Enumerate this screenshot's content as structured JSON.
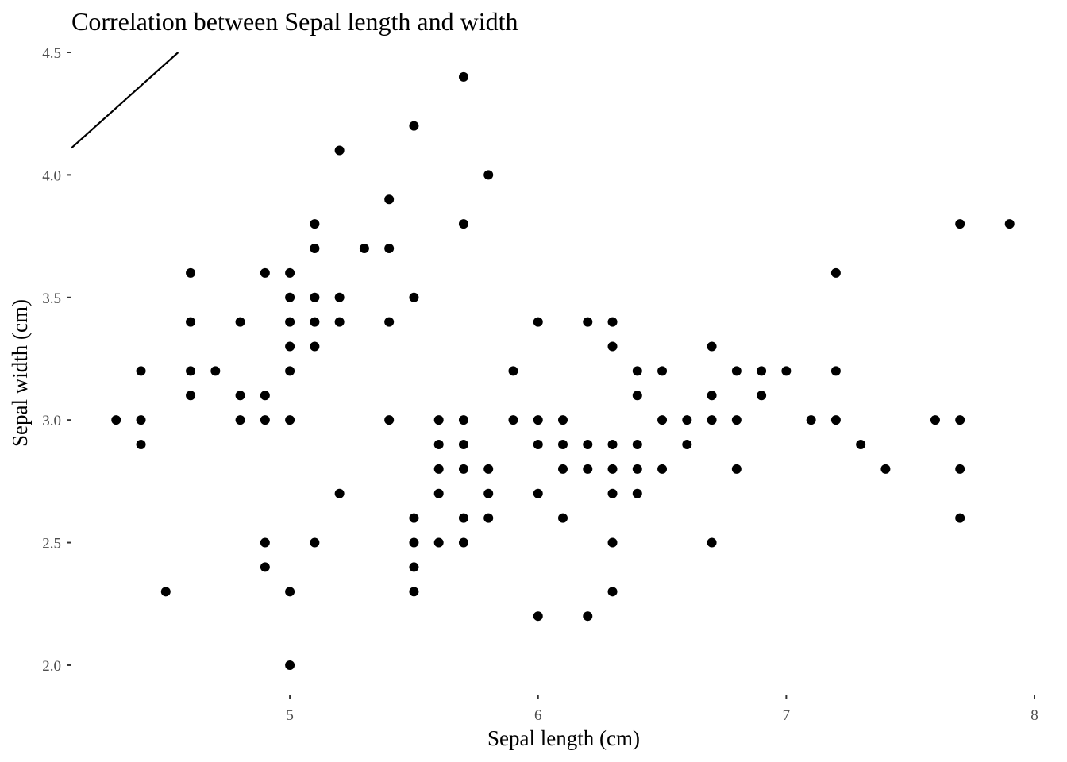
{
  "chart_data": {
    "type": "scatter",
    "title": "Correlation between Sepal length and width",
    "xlabel": "Sepal length (cm)",
    "ylabel": "Sepal width (cm)",
    "xlim": [
      4.12,
      8.0
    ],
    "ylim": [
      1.88,
      4.5
    ],
    "xticks": [
      5,
      6,
      7,
      8
    ],
    "xtick_labels": [
      "5",
      "6",
      "7",
      "8"
    ],
    "yticks": [
      2.0,
      2.5,
      3.0,
      3.5,
      4.0,
      4.5
    ],
    "ytick_labels": [
      "2.0",
      "2.5",
      "3.0",
      "3.5",
      "4.0",
      "4.5"
    ],
    "grid": false,
    "line": {
      "x": [
        4.12,
        4.55
      ],
      "y": [
        4.11,
        4.5
      ]
    },
    "points": [
      [
        4.3,
        3.0
      ],
      [
        4.4,
        3.2
      ],
      [
        4.4,
        3.0
      ],
      [
        4.4,
        2.9
      ],
      [
        4.5,
        2.3
      ],
      [
        4.6,
        3.6
      ],
      [
        4.6,
        3.4
      ],
      [
        4.6,
        3.2
      ],
      [
        4.6,
        3.1
      ],
      [
        4.7,
        3.2
      ],
      [
        4.8,
        3.4
      ],
      [
        4.8,
        3.1
      ],
      [
        4.8,
        3.0
      ],
      [
        4.9,
        3.6
      ],
      [
        4.9,
        3.1
      ],
      [
        4.9,
        3.0
      ],
      [
        4.9,
        2.5
      ],
      [
        4.9,
        2.4
      ],
      [
        5.0,
        3.6
      ],
      [
        5.0,
        3.5
      ],
      [
        5.0,
        3.4
      ],
      [
        5.0,
        3.3
      ],
      [
        5.0,
        3.2
      ],
      [
        5.0,
        3.0
      ],
      [
        5.0,
        2.3
      ],
      [
        5.0,
        2.0
      ],
      [
        5.1,
        3.8
      ],
      [
        5.1,
        3.7
      ],
      [
        5.1,
        3.5
      ],
      [
        5.1,
        3.4
      ],
      [
        5.1,
        3.3
      ],
      [
        5.1,
        2.5
      ],
      [
        5.2,
        4.1
      ],
      [
        5.2,
        3.5
      ],
      [
        5.2,
        3.4
      ],
      [
        5.2,
        2.7
      ],
      [
        5.3,
        3.7
      ],
      [
        5.4,
        3.9
      ],
      [
        5.4,
        3.7
      ],
      [
        5.4,
        3.4
      ],
      [
        5.4,
        3.0
      ],
      [
        5.5,
        4.2
      ],
      [
        5.5,
        3.5
      ],
      [
        5.5,
        2.6
      ],
      [
        5.5,
        2.5
      ],
      [
        5.5,
        2.4
      ],
      [
        5.5,
        2.3
      ],
      [
        5.6,
        3.0
      ],
      [
        5.6,
        2.9
      ],
      [
        5.6,
        2.8
      ],
      [
        5.6,
        2.7
      ],
      [
        5.6,
        2.5
      ],
      [
        5.7,
        4.4
      ],
      [
        5.7,
        3.8
      ],
      [
        5.7,
        3.0
      ],
      [
        5.7,
        2.9
      ],
      [
        5.7,
        2.8
      ],
      [
        5.7,
        2.6
      ],
      [
        5.7,
        2.5
      ],
      [
        5.8,
        4.0
      ],
      [
        5.8,
        2.8
      ],
      [
        5.8,
        2.7
      ],
      [
        5.8,
        2.6
      ],
      [
        5.9,
        3.2
      ],
      [
        5.9,
        3.0
      ],
      [
        6.0,
        3.4
      ],
      [
        6.0,
        3.0
      ],
      [
        6.0,
        2.9
      ],
      [
        6.0,
        2.7
      ],
      [
        6.0,
        2.2
      ],
      [
        6.1,
        3.0
      ],
      [
        6.1,
        2.9
      ],
      [
        6.1,
        2.8
      ],
      [
        6.1,
        2.6
      ],
      [
        6.2,
        3.4
      ],
      [
        6.2,
        2.9
      ],
      [
        6.2,
        2.8
      ],
      [
        6.2,
        2.2
      ],
      [
        6.3,
        3.4
      ],
      [
        6.3,
        3.3
      ],
      [
        6.3,
        2.9
      ],
      [
        6.3,
        2.8
      ],
      [
        6.3,
        2.7
      ],
      [
        6.3,
        2.5
      ],
      [
        6.3,
        2.3
      ],
      [
        6.4,
        3.2
      ],
      [
        6.4,
        3.1
      ],
      [
        6.4,
        2.9
      ],
      [
        6.4,
        2.8
      ],
      [
        6.4,
        2.7
      ],
      [
        6.5,
        3.2
      ],
      [
        6.5,
        3.0
      ],
      [
        6.5,
        2.8
      ],
      [
        6.6,
        3.0
      ],
      [
        6.6,
        2.9
      ],
      [
        6.7,
        3.3
      ],
      [
        6.7,
        3.1
      ],
      [
        6.7,
        3.0
      ],
      [
        6.7,
        2.5
      ],
      [
        6.8,
        3.2
      ],
      [
        6.8,
        3.0
      ],
      [
        6.8,
        2.8
      ],
      [
        6.9,
        3.2
      ],
      [
        6.9,
        3.1
      ],
      [
        7.0,
        3.2
      ],
      [
        7.1,
        3.0
      ],
      [
        7.2,
        3.6
      ],
      [
        7.2,
        3.2
      ],
      [
        7.2,
        3.0
      ],
      [
        7.3,
        2.9
      ],
      [
        7.4,
        2.8
      ],
      [
        7.6,
        3.0
      ],
      [
        7.7,
        3.8
      ],
      [
        7.7,
        3.0
      ],
      [
        7.7,
        2.8
      ],
      [
        7.7,
        2.6
      ],
      [
        7.9,
        3.8
      ]
    ]
  }
}
